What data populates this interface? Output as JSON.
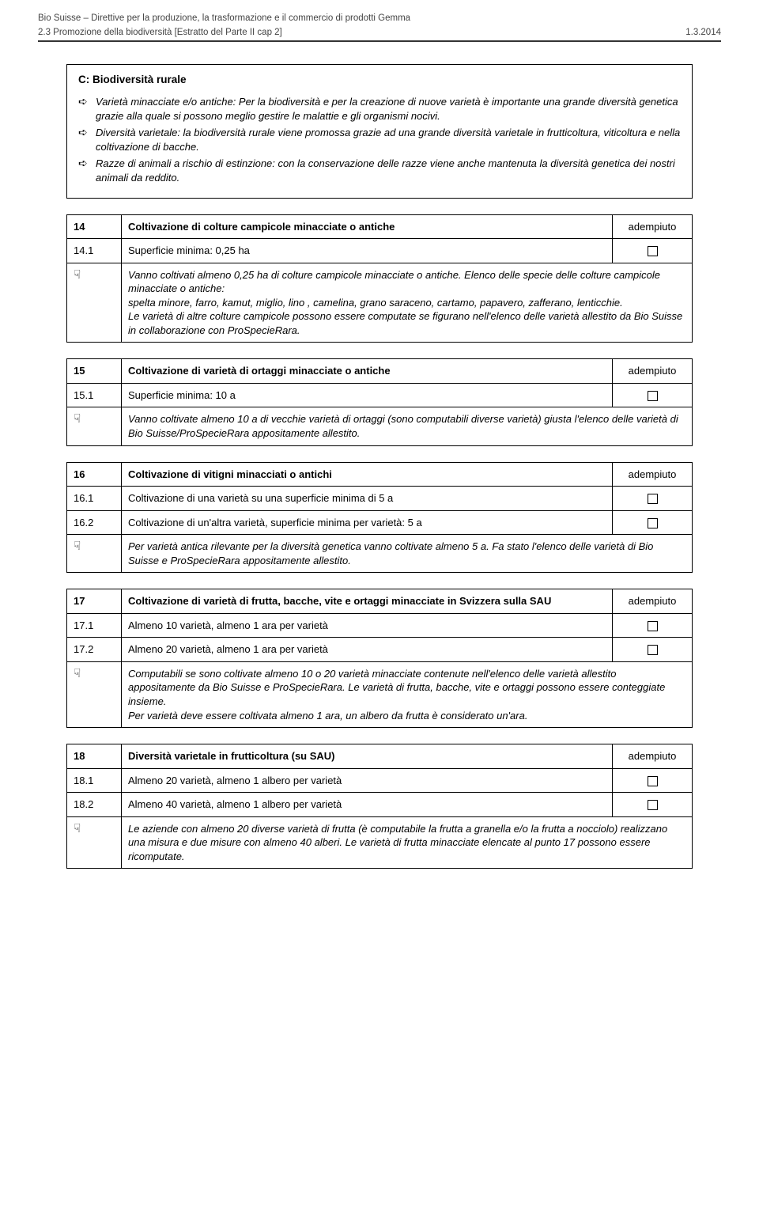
{
  "header": {
    "line1": "Bio Suisse – Direttive per la produzione, la trasformazione e il commercio di prodotti Gemma",
    "line2_left": "2.3 Promozione della biodiversità [Estratto del Parte II cap 2]",
    "line2_right": "1.3.2014"
  },
  "sectionC": {
    "title": "C: Biodiversità rurale",
    "bullets": [
      "Varietà minacciate e/o antiche:\nPer la biodiversità e per la creazione di nuove varietà è importante una grande diversità genetica grazie alla quale si possono meglio gestire le malattie e gli organismi nocivi.",
      "Diversità varietale: la biodiversità rurale viene promossa grazie ad una grande diversità varietale in frutticoltura, viticoltura e nella coltivazione di bacche.",
      "Razze di animali a rischio di estinzione: con la conservazione delle razze viene anche mantenuta la diversità genetica dei nostri animali da reddito."
    ]
  },
  "status_label": "adempiuto",
  "tables": [
    {
      "num": "14",
      "title": "Coltivazione di colture campicole minacciate o antiche",
      "rows": [
        {
          "num": "14.1",
          "text": "Superficie minima: 0,25 ha",
          "checkbox": true
        }
      ],
      "note": "Vanno coltivati almeno 0,25 ha di colture campicole minacciate o antiche. Elenco delle specie delle colture campicole minacciate o antiche:\nspelta minore, farro, kamut, miglio, lino , camelina, grano saraceno, cartamo, papavero, zafferano, lenticchie.\nLe varietà di altre colture campicole possono essere computate se figurano nell'elenco delle varietà allestito da Bio Suisse in collaborazione con ProSpecieRara."
    },
    {
      "num": "15",
      "title": "Coltivazione di varietà di ortaggi minacciate o antiche",
      "rows": [
        {
          "num": "15.1",
          "text": "Superficie minima: 10 a",
          "checkbox": true
        }
      ],
      "note": "Vanno coltivate almeno 10 a di vecchie varietà di ortaggi (sono computabili diverse varietà) giusta l'elenco delle varietà di Bio Suisse/ProSpecieRara appositamente allestito."
    },
    {
      "num": "16",
      "title": "Coltivazione di vitigni minacciati o antichi",
      "rows": [
        {
          "num": "16.1",
          "text": "Coltivazione di una varietà su una superficie minima di 5 a",
          "checkbox": true
        },
        {
          "num": "16.2",
          "text": "Coltivazione di un'altra varietà, superficie minima per varietà: 5 a",
          "checkbox": true
        }
      ],
      "note": "Per varietà antica rilevante per la diversità genetica vanno coltivate almeno 5 a. Fa stato l'elenco delle varietà di Bio Suisse e ProSpecieRara appositamente allestito."
    },
    {
      "num": "17",
      "title": "Coltivazione di varietà di frutta, bacche, vite e ortaggi minacciate in Svizzera sulla SAU",
      "rows": [
        {
          "num": "17.1",
          "text": "Almeno 10 varietà, almeno 1 ara per varietà",
          "checkbox": true
        },
        {
          "num": "17.2",
          "text": "Almeno 20 varietà, almeno 1 ara per varietà",
          "checkbox": true
        }
      ],
      "note": "Computabili se sono coltivate almeno 10 o 20 varietà minacciate contenute nell'elenco delle varietà allestito appositamente da Bio Suisse e ProSpecieRara. Le varietà di frutta, bacche, vite e ortaggi possono essere conteggiate insieme.\nPer varietà deve essere coltivata almeno 1 ara, un albero da frutta è considerato un'ara."
    },
    {
      "num": "18",
      "title": "Diversità varietale in frutticoltura (su SAU)",
      "rows": [
        {
          "num": "18.1",
          "text": "Almeno 20 varietà, almeno 1 albero per varietà",
          "checkbox": true
        },
        {
          "num": "18.2",
          "text": "Almeno 40 varietà, almeno 1 albero per varietà",
          "checkbox": true
        }
      ],
      "note": "Le aziende con almeno 20 diverse varietà di frutta (è computabile la frutta a granella e/o la frutta a nocciolo) realizzano una misura e due misure con almeno 40 alberi. Le varietà di frutta minacciate elencate al punto 17 possono essere ricomputate."
    }
  ]
}
